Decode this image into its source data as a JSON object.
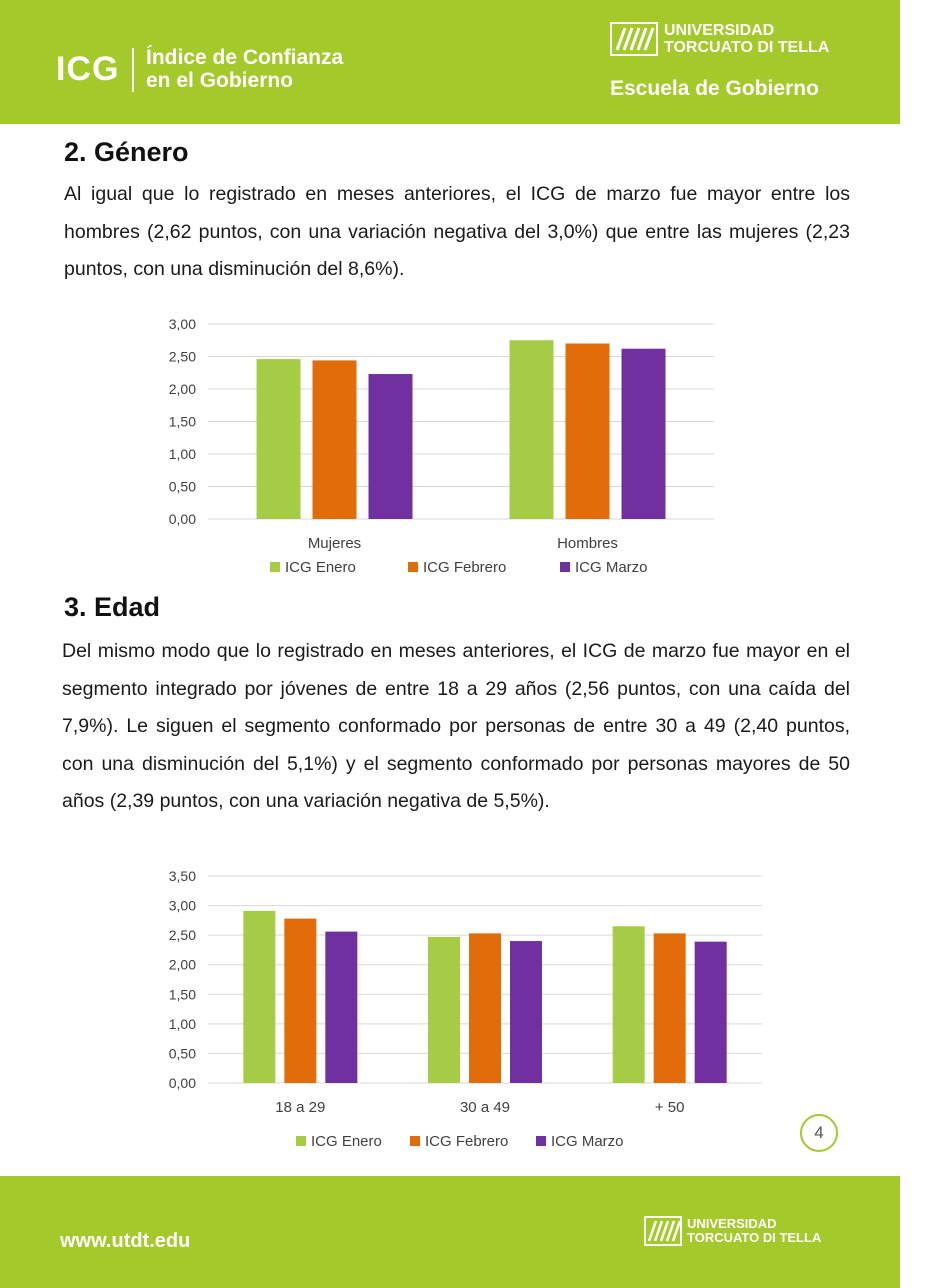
{
  "header": {
    "abbr": "ICG",
    "name_line1": "Índice de Confianza",
    "name_line2": "en el Gobierno",
    "university_line1": "UNIVERSIDAD",
    "university_line2": "TORCUATO DI TELLA",
    "school": "Escuela de Gobierno"
  },
  "section_gender": {
    "title": "2. Género",
    "paragraph": "Al igual que lo registrado en meses anteriores, el ICG de marzo fue mayor entre los hombres (2,62 puntos, con una variación negativa del 3,0%) que entre las mujeres (2,23 puntos, con una disminución del 8,6%)."
  },
  "section_age": {
    "title": "3. Edad",
    "paragraph": "Del mismo modo que lo registrado en meses anteriores, el ICG de marzo fue mayor en el segmento integrado por jóvenes de entre 18 a 29 años (2,56 puntos, con una caída del 7,9%). Le siguen el segmento conformado por personas de entre 30 a 49 (2,40 puntos, con una disminución del 5,1%) y el segmento conformado por personas mayores de 50 años (2,39 puntos, con una variación negativa de 5,5%)."
  },
  "colors": {
    "green": "#a4c92a",
    "bar_enero": "#a6cb45",
    "bar_febrero": "#e36c0a",
    "bar_marzo": "#7030a0",
    "grid": "#d9d9d9"
  },
  "chart_data": [
    {
      "type": "bar",
      "title": "",
      "categories": [
        "Mujeres",
        "Hombres"
      ],
      "series": [
        {
          "name": "ICG Enero",
          "values": [
            2.46,
            2.75
          ]
        },
        {
          "name": "ICG Febrero",
          "values": [
            2.44,
            2.7
          ]
        },
        {
          "name": "ICG Marzo",
          "values": [
            2.23,
            2.62
          ]
        }
      ],
      "y_ticks": [
        "0,00",
        "0,50",
        "1,00",
        "1,50",
        "2,00",
        "2,50",
        "3,00"
      ],
      "ylim": [
        0,
        3
      ],
      "grid": true,
      "legend": "bottom"
    },
    {
      "type": "bar",
      "title": "",
      "categories": [
        "18 a 29",
        "30 a 49",
        "+ 50"
      ],
      "series": [
        {
          "name": "ICG Enero",
          "values": [
            2.91,
            2.47,
            2.65
          ]
        },
        {
          "name": "ICG Febrero",
          "values": [
            2.78,
            2.53,
            2.53
          ]
        },
        {
          "name": "ICG Marzo",
          "values": [
            2.56,
            2.4,
            2.39
          ]
        }
      ],
      "y_ticks": [
        "0,00",
        "0,50",
        "1,00",
        "1,50",
        "2,00",
        "2,50",
        "3,00",
        "3,50"
      ],
      "ylim": [
        0,
        3.5
      ],
      "grid": true,
      "legend": "bottom"
    }
  ],
  "footer": {
    "url": "www.utdt.edu",
    "university_line1": "UNIVERSIDAD",
    "university_line2": "TORCUATO DI TELLA"
  },
  "page_number": "4"
}
